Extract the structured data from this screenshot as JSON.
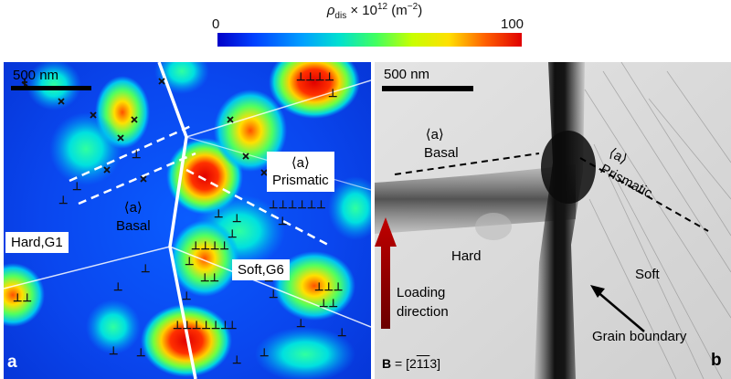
{
  "colorbar": {
    "title": "ρdis × 10¹² (m⁻²)",
    "title_main": "ρ",
    "title_sub": "dis",
    "title_mid": " × 10",
    "title_sup": "12",
    "title_unit": " (m",
    "title_unit_sup": "−2",
    "title_end": ")",
    "min_label": "0",
    "max_label": "100"
  },
  "panel_a": {
    "letter": "a",
    "scale_bar": "500 nm",
    "hard_label": "Hard,G1",
    "soft_label": "Soft,G6",
    "prismatic_label_top": "⟨a⟩",
    "prismatic_label_bottom": "Prismatic",
    "basal_label_top": "⟨a⟩",
    "basal_label_bottom": "Basal"
  },
  "panel_b": {
    "letter": "b",
    "scale_bar": "500 nm",
    "basal_top": "⟨a⟩",
    "basal_bottom": "Basal",
    "prismatic_top": "⟨a⟩",
    "prismatic_bottom": "Prismatic",
    "hard_label": "Hard",
    "soft_label": "Soft",
    "loading_line1": "Loading",
    "loading_line2": "direction",
    "grain_boundary": "Grain boundary",
    "beam_direction_B": "B",
    "beam_direction_eq": " = [2",
    "beam_direction_bar1": "1",
    "beam_direction_bar2": "1",
    "beam_direction_end": "3]"
  }
}
